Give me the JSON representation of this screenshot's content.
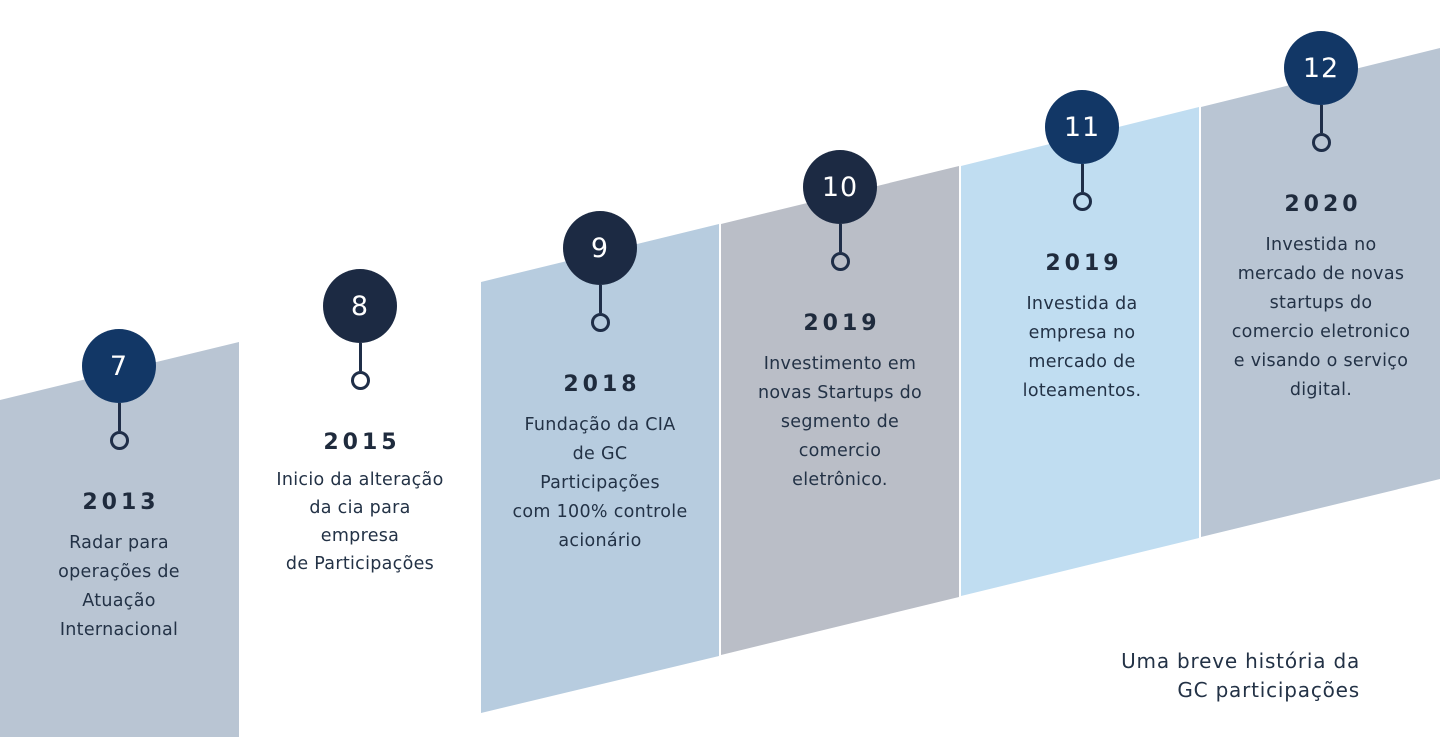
{
  "colors": {
    "badge_navy": "#123766",
    "badge_dark": "#1c2a43",
    "panel_blue_grey": "#b9c5d3",
    "panel_light_blue": "#b7ccdf",
    "panel_grey": "#babec7",
    "panel_sky": "#c0ddf1",
    "text": "#233246"
  },
  "milestones": [
    {
      "number": "7",
      "year": "2013",
      "lines": [
        "Radar para",
        "operações de",
        "Atuação",
        "Internacional"
      ]
    },
    {
      "number": "8",
      "year": "2015",
      "lines": [
        "Inicio da alteração",
        "da cia para empresa",
        "de Participações"
      ]
    },
    {
      "number": "9",
      "year": "2018",
      "lines": [
        "Fundação da CIA",
        "de GC Participações",
        "com 100% controle",
        "acionário"
      ]
    },
    {
      "number": "10",
      "year": "2019",
      "lines": [
        "Investimento em",
        "novas Startups do",
        "segmento de",
        "comercio",
        "eletrônico."
      ]
    },
    {
      "number": "11",
      "year": "2019",
      "lines": [
        "Investida da",
        "empresa no",
        "mercado de",
        "loteamentos."
      ]
    },
    {
      "number": "12",
      "year": "2020",
      "lines": [
        "Investida no",
        "mercado de novas",
        "startups do",
        "comercio eletronico",
        "e visando o serviço",
        "digital."
      ]
    }
  ],
  "caption": {
    "line1": "Uma breve história da",
    "line2": "GC participações"
  }
}
